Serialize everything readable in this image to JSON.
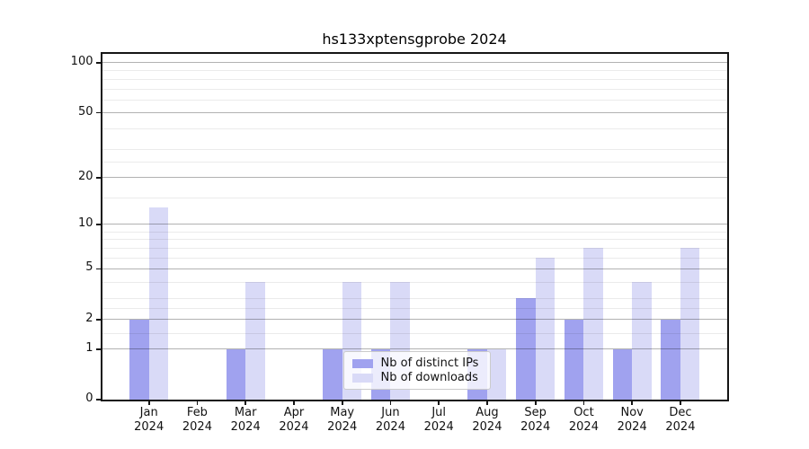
{
  "chart_data": {
    "type": "bar",
    "title": "hs133xptensgprobe 2024",
    "x_tick_months": [
      "Jan",
      "Feb",
      "Mar",
      "Apr",
      "May",
      "Jun",
      "Jul",
      "Aug",
      "Sep",
      "Oct",
      "Nov",
      "Dec"
    ],
    "x_tick_year": "2024",
    "series": [
      {
        "name": "Nb of distinct IPs",
        "color": "#a0a2ef",
        "values": [
          2,
          0,
          1,
          0,
          1,
          1,
          0,
          1,
          3,
          2,
          1,
          2
        ]
      },
      {
        "name": "Nb of downloads",
        "color": "#d9daf7",
        "values": [
          13,
          0,
          4,
          0,
          4,
          4,
          0,
          1,
          6,
          7,
          4,
          7
        ]
      }
    ],
    "y_ticks": [
      100,
      50,
      20,
      10,
      5,
      2,
      1,
      0
    ],
    "y_minor_gridlines": [
      1.5,
      2.5,
      3,
      4,
      6,
      7,
      8,
      9,
      15,
      25,
      30,
      40,
      60,
      70,
      80,
      90
    ],
    "y_scale": "log1p",
    "ylim": [
      0,
      110
    ],
    "grid": "on",
    "legend_position": "lower center"
  }
}
